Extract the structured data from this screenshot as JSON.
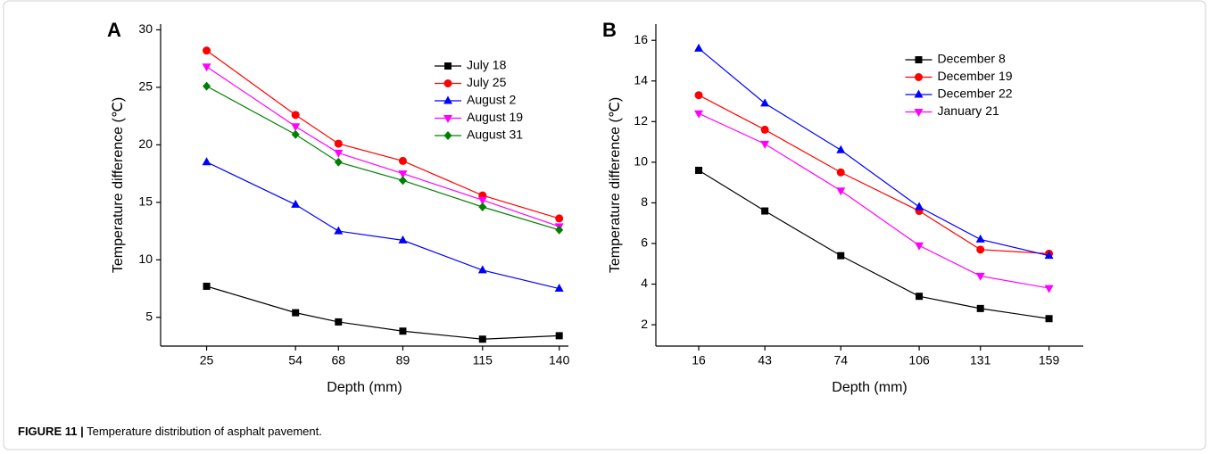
{
  "chart_data": [
    {
      "type": "line",
      "label": "A",
      "xlabel": "Depth (mm)",
      "ylabel": "Temperature difference (℃)",
      "x": [
        25,
        54,
        68,
        89,
        115,
        140
      ],
      "xlim": [
        10,
        143
      ],
      "xticks": [
        25,
        54,
        68,
        89,
        115,
        140
      ],
      "ylim": [
        2.5,
        30.5
      ],
      "yticks": [
        5,
        10,
        15,
        20,
        25,
        30
      ],
      "grid": false,
      "legend": "upper right",
      "series": [
        {
          "name": "July 18",
          "color": "#000000",
          "marker": "square",
          "values": [
            7.7,
            5.4,
            4.6,
            3.8,
            3.1,
            3.4
          ]
        },
        {
          "name": "July 25",
          "color": "#ff0000",
          "marker": "circle",
          "values": [
            28.2,
            22.6,
            20.1,
            18.6,
            15.6,
            13.6
          ]
        },
        {
          "name": "August 2",
          "color": "#0000ff",
          "marker": "triangle-up",
          "values": [
            18.5,
            14.8,
            12.5,
            11.7,
            9.1,
            7.5
          ]
        },
        {
          "name": "August 19",
          "color": "#ff00ff",
          "marker": "triangle-down",
          "values": [
            26.8,
            21.6,
            19.3,
            17.5,
            15.2,
            12.9
          ]
        },
        {
          "name": "August 31",
          "color": "#008000",
          "marker": "diamond",
          "values": [
            25.1,
            20.9,
            18.5,
            16.9,
            14.6,
            12.6
          ]
        }
      ]
    },
    {
      "type": "line",
      "label": "B",
      "xlabel": "Depth (mm)",
      "ylabel": "Temperature difference (℃)",
      "x": [
        16,
        43,
        74,
        106,
        131,
        159
      ],
      "xlim": [
        -1.5,
        173
      ],
      "xticks": [
        16,
        43,
        74,
        106,
        131,
        159
      ],
      "ylim": [
        0.95,
        16.8
      ],
      "yticks": [
        2,
        4,
        6,
        8,
        10,
        12,
        14,
        16
      ],
      "grid": false,
      "legend": "upper center",
      "series": [
        {
          "name": "December 8",
          "color": "#000000",
          "marker": "square",
          "values": [
            9.6,
            7.6,
            5.4,
            3.4,
            2.8,
            2.3
          ]
        },
        {
          "name": "December 19",
          "color": "#ff0000",
          "marker": "circle",
          "values": [
            13.3,
            11.6,
            9.5,
            7.6,
            5.7,
            5.5
          ]
        },
        {
          "name": "December 22",
          "color": "#0000ff",
          "marker": "triangle-up",
          "values": [
            15.6,
            12.9,
            10.6,
            7.8,
            6.2,
            5.4
          ]
        },
        {
          "name": "January 21",
          "color": "#ff00ff",
          "marker": "triangle-down",
          "values": [
            12.4,
            10.9,
            8.6,
            5.9,
            4.4,
            3.8
          ]
        }
      ]
    }
  ],
  "caption": {
    "label": "FIGURE 11 |",
    "text": "Temperature distribution of asphalt pavement."
  }
}
